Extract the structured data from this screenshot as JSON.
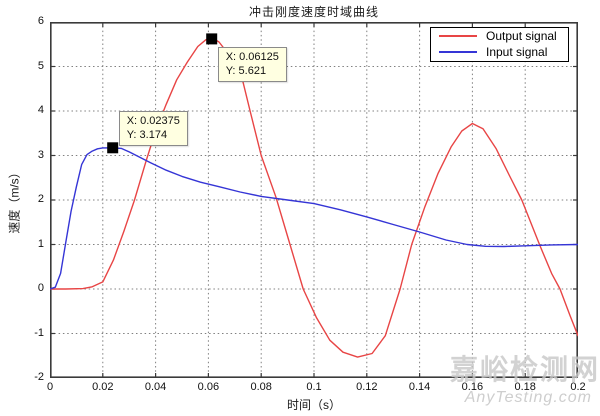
{
  "title": "冲击刚度速度时域曲线",
  "watermark": {
    "cjk": "嘉峪检测网",
    "latin": "AnyTesting.com"
  },
  "chart_data": {
    "type": "line",
    "title": "冲击刚度速度时域曲线",
    "xlabel": "时间（s）",
    "ylabel": "速度（m/s）",
    "xlim": [
      0,
      0.2
    ],
    "ylim": [
      -2,
      6
    ],
    "grid": true,
    "legend_position": "top-right",
    "xticks": [
      0,
      0.02,
      0.04,
      0.06,
      0.08,
      0.1,
      0.12,
      0.14,
      0.16,
      0.18,
      0.2
    ],
    "xtick_labels": [
      "0",
      "0.02",
      "0.04",
      "0.06",
      "0.08",
      "0.1",
      "0.12",
      "0.14",
      "0.16",
      "0.18",
      "0.2"
    ],
    "yticks": [
      -2,
      -1,
      0,
      1,
      2,
      3,
      4,
      5,
      6
    ],
    "ytick_labels": [
      "-2",
      "-1",
      "0",
      "1",
      "2",
      "3",
      "4",
      "5",
      "6"
    ],
    "series": [
      {
        "name": "Output signal",
        "color": "#e84545",
        "x": [
          0,
          0.006,
          0.0125,
          0.016,
          0.02,
          0.024,
          0.028,
          0.032,
          0.0365,
          0.04,
          0.044,
          0.048,
          0.052,
          0.056,
          0.059,
          0.06125,
          0.064,
          0.068,
          0.0726,
          0.0758,
          0.08,
          0.0856,
          0.0909,
          0.0959,
          0.101,
          0.106,
          0.111,
          0.1165,
          0.122,
          0.127,
          0.1326,
          0.137,
          0.142,
          0.147,
          0.152,
          0.156,
          0.16,
          0.164,
          0.169,
          0.174,
          0.1787,
          0.1856,
          0.19,
          0.1932,
          0.197,
          0.2
        ],
        "y": [
          0,
          0,
          0.01,
          0.05,
          0.16,
          0.65,
          1.3,
          2.0,
          2.9,
          3.55,
          4.15,
          4.7,
          5.1,
          5.45,
          5.6,
          5.65,
          5.55,
          5.25,
          4.77,
          4.0,
          3.0,
          2.06,
          1.0,
          0,
          -0.65,
          -1.15,
          -1.42,
          -1.53,
          -1.45,
          -1.05,
          0,
          1.0,
          1.85,
          2.6,
          3.2,
          3.55,
          3.72,
          3.6,
          3.15,
          2.55,
          2.0,
          0.97,
          0.35,
          0,
          -0.6,
          -1.05
        ]
      },
      {
        "name": "Input signal",
        "color": "#3535d6",
        "x": [
          0,
          0.002,
          0.004,
          0.006,
          0.008,
          0.01,
          0.012,
          0.014,
          0.016,
          0.018,
          0.02,
          0.02375,
          0.027,
          0.03,
          0.034,
          0.038,
          0.044,
          0.05,
          0.057,
          0.064,
          0.072,
          0.08,
          0.09,
          0.1,
          0.11,
          0.12,
          0.13,
          0.14,
          0.15,
          0.158,
          0.165,
          0.172,
          0.18,
          0.19,
          0.2
        ],
        "y": [
          0,
          0.04,
          0.35,
          1.05,
          1.75,
          2.3,
          2.8,
          3.02,
          3.1,
          3.15,
          3.17,
          3.174,
          3.16,
          3.08,
          2.96,
          2.84,
          2.67,
          2.53,
          2.4,
          2.3,
          2.18,
          2.08,
          2.0,
          1.92,
          1.78,
          1.62,
          1.45,
          1.28,
          1.1,
          1.0,
          0.96,
          0.955,
          0.97,
          0.99,
          1.0
        ]
      }
    ],
    "datatips": [
      {
        "x": 0.06125,
        "y": 5.621,
        "line1": "X: 0.06125",
        "line2": "Y: 5.621",
        "box_dx": 6,
        "box_dy": 8
      },
      {
        "x": 0.02375,
        "y": 3.174,
        "line1": "X: 0.02375",
        "line2": "Y: 3.174",
        "box_dx": 6,
        "box_dy": -37
      }
    ]
  },
  "style": {
    "marker_color": "#000000",
    "tooltip_bg": "#ffffe1",
    "grid_color": "#808080",
    "frame_color": "#3a3a3a"
  }
}
